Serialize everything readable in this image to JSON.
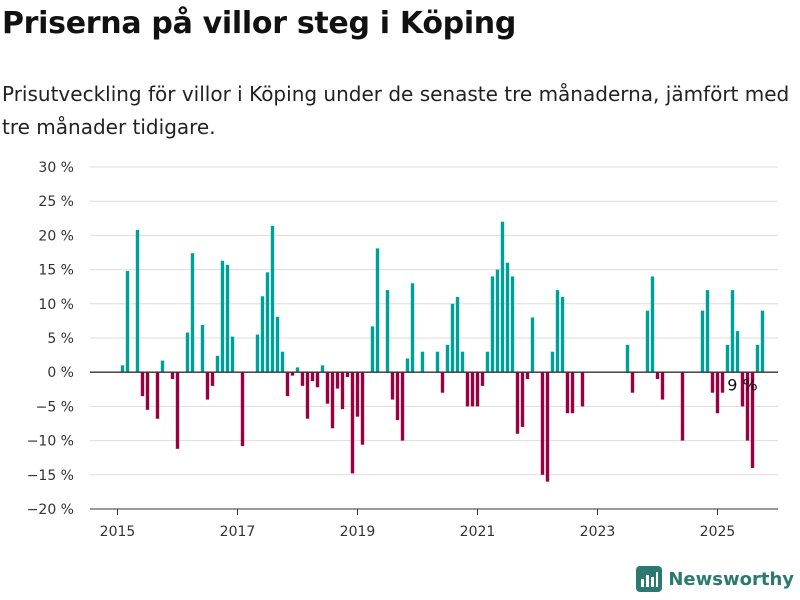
{
  "title": "Priserna på villor steg i Köping",
  "subtitle": "Prisutveckling för villor i Köping under de senaste tre månaderna, jämfört med tre månader tidigare.",
  "brand": {
    "name": "Newsworthy",
    "icon": "newsworthy-logo-icon"
  },
  "colors": {
    "positive": "#00a09a",
    "negative": "#990040",
    "zero_line": "#333333",
    "grid": "#dddddd"
  },
  "chart_data": {
    "type": "bar",
    "title": "Priserna på villor steg i Köping",
    "ylim": [
      -20,
      30
    ],
    "yticks": [
      30,
      25,
      20,
      15,
      10,
      5,
      0,
      -5,
      -10,
      -15,
      -20
    ],
    "ytick_labels": [
      "30 %",
      "25 %",
      "20 %",
      "15 %",
      "10 %",
      "5 %",
      "0 %",
      "−5 %",
      "−10 %",
      "−15 %",
      "−20 %"
    ],
    "xticks": [
      2015,
      2017,
      2019,
      2021,
      2023,
      2025
    ],
    "xtick_labels": [
      "2015",
      "2017",
      "2019",
      "2021",
      "2023",
      "2025"
    ],
    "grid": true,
    "start_month": "2015-01",
    "annotation": {
      "text": "9 %",
      "month": "2025-06"
    },
    "values": [
      0,
      1,
      14.8,
      0,
      20.8,
      -3.5,
      -5.5,
      0,
      -6.8,
      1.7,
      0,
      -1,
      -11.2,
      0,
      5.8,
      17.4,
      0,
      6.9,
      -4,
      -2,
      2.4,
      16.3,
      15.7,
      5.2,
      0,
      -10.8,
      0,
      0,
      5.5,
      11.1,
      14.6,
      21.4,
      8.1,
      3,
      -3.5,
      -0.5,
      0.7,
      -2,
      -6.8,
      -1.3,
      -2.2,
      1,
      -4.6,
      -8.2,
      -2.4,
      -5.4,
      -0.7,
      -14.8,
      -6.5,
      -10.6,
      0,
      6.7,
      18.1,
      0,
      12,
      -4,
      -7,
      -10,
      2,
      13,
      0,
      3,
      0,
      0,
      3,
      -3,
      4,
      10,
      11,
      3,
      -5,
      -5,
      -5,
      -2,
      3,
      14,
      15,
      22,
      16,
      14,
      -9,
      -8,
      -1,
      8,
      0,
      -15,
      -16,
      3,
      12,
      11,
      -6,
      -6,
      0,
      -5,
      0,
      0,
      0,
      0,
      0,
      0,
      0,
      0,
      4,
      -3,
      0,
      0,
      9,
      14,
      -1,
      -4,
      0,
      0,
      0,
      -10,
      0,
      0,
      0,
      9,
      12,
      -3,
      -6,
      -3,
      4,
      12,
      6,
      -5,
      -10,
      -14,
      4,
      9
    ]
  }
}
